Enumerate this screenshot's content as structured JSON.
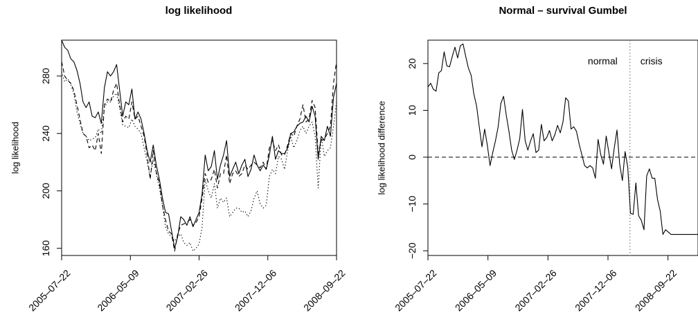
{
  "chart_data": [
    {
      "type": "line",
      "title": "log likelihood",
      "xlabel": "",
      "ylabel": "log likelihood",
      "x_tick_labels": [
        "2005–07–22",
        "2006–05–09",
        "2007–02–26",
        "2007–12–06",
        "2008–09–22"
      ],
      "y_ticks": [
        160,
        200,
        240,
        280
      ],
      "ylim": [
        155,
        305
      ],
      "n_points": 91,
      "grid": false,
      "series": [
        {
          "style": "solid",
          "values": [
            305,
            300,
            298,
            292,
            290,
            284,
            275,
            262,
            258,
            262,
            252,
            251,
            255,
            247,
            272,
            283,
            280,
            283,
            288,
            270,
            252,
            262,
            260,
            271,
            250,
            255,
            250,
            240,
            228,
            220,
            232,
            218,
            208,
            195,
            185,
            184,
            172,
            160,
            168,
            182,
            180,
            176,
            182,
            175,
            180,
            185,
            198,
            225,
            214,
            217,
            228,
            208,
            218,
            225,
            235,
            210,
            215,
            220,
            212,
            218,
            222,
            210,
            215,
            225,
            218,
            214,
            218,
            215,
            225,
            238,
            222,
            228,
            226,
            226,
            230,
            240,
            241,
            245,
            247,
            248,
            252,
            248,
            259,
            252,
            222,
            238,
            235,
            245,
            238,
            265,
            275
          ]
        },
        {
          "style": "dashed",
          "values": [
            290,
            280,
            277,
            275,
            270,
            260,
            250,
            240,
            238,
            230,
            232,
            228,
            240,
            226,
            260,
            264,
            262,
            270,
            275,
            260,
            248,
            252,
            250,
            262,
            250,
            252,
            245,
            238,
            225,
            208,
            228,
            213,
            205,
            190,
            180,
            172,
            170,
            158,
            170,
            176,
            177,
            178,
            180,
            176,
            178,
            182,
            195,
            212,
            206,
            208,
            215,
            202,
            212,
            212,
            225,
            205,
            212,
            214,
            210,
            212,
            218,
            215,
            218,
            220,
            218,
            216,
            220,
            215,
            230,
            235,
            228,
            232,
            225,
            225,
            232,
            240,
            238,
            245,
            250,
            260,
            248,
            250,
            263,
            258,
            226,
            235,
            236,
            240,
            245,
            275,
            290
          ]
        },
        {
          "style": "dotted",
          "values": [
            283,
            276,
            278,
            274,
            268,
            255,
            247,
            240,
            238,
            235,
            236,
            237,
            243,
            240,
            258,
            262,
            262,
            266,
            268,
            258,
            246,
            245,
            244,
            250,
            245,
            243,
            240,
            230,
            220,
            210,
            222,
            212,
            202,
            190,
            175,
            170,
            168,
            165,
            168,
            170,
            164,
            162,
            164,
            158,
            160,
            163,
            175,
            208,
            200,
            195,
            205,
            188,
            195,
            192,
            195,
            182,
            185,
            188,
            188,
            185,
            186,
            182,
            186,
            195,
            200,
            191,
            188,
            190,
            210,
            215,
            212,
            224,
            222,
            215,
            228,
            238,
            230,
            235,
            242,
            245,
            240,
            245,
            248,
            238,
            202,
            238,
            224,
            228,
            230,
            245,
            262
          ]
        }
      ]
    },
    {
      "type": "line",
      "title": "Normal – survival Gumbel",
      "xlabel": "",
      "ylabel": "log likelihood difference",
      "x_tick_labels": [
        "2005–07–22",
        "2006–05–09",
        "2007–02–26",
        "2007–12–06",
        "2008–09–22"
      ],
      "y_ticks": [
        -20,
        -10,
        0,
        10,
        20
      ],
      "ylim": [
        -21,
        25
      ],
      "n_points": 101,
      "grid": false,
      "reference_line": {
        "y": 0,
        "style": "dashed"
      },
      "vertical_marker": {
        "x_index": 74.8,
        "style": "dotted"
      },
      "annotations": [
        "normal",
        "crisis"
      ],
      "series": [
        {
          "style": "solid",
          "values": [
            15,
            15.8,
            14.5,
            14.1,
            18,
            18.5,
            22.5,
            19.5,
            19.3,
            21.5,
            23.5,
            21.2,
            23.8,
            24.2,
            21.5,
            19,
            17.5,
            13.5,
            11,
            6.5,
            2.2,
            6,
            2.5,
            -1.8,
            1,
            3.5,
            6.5,
            11.5,
            13,
            9,
            5.5,
            1.5,
            -0.5,
            1.5,
            4,
            10.2,
            3.5,
            1.5,
            3.5,
            5,
            1,
            1.5,
            7,
            3.5,
            4.2,
            5.7,
            3.5,
            4.8,
            6.8,
            5.2,
            7.5,
            12.7,
            12,
            6,
            6.5,
            5.5,
            2.8,
            0.5,
            -1.8,
            -2.3,
            -1.8,
            -2.3,
            -4.5,
            3.8,
            0.5,
            -1.5,
            4.5,
            1,
            -2.5,
            2,
            5.8,
            -1.5,
            -5,
            1.2,
            -2.2,
            -12,
            -12.2,
            -5.5,
            -12.5,
            -13.5,
            -15.5,
            -4,
            -2.5,
            -4.5,
            -4.5,
            -9,
            -11.5,
            -16.5,
            -15.5,
            -16,
            -16.5,
            -16.5,
            -16.5,
            -16.5,
            -16.5,
            -16.5,
            -16.5,
            -16.5,
            -16.5,
            -16.5,
            -16.5
          ]
        }
      ]
    }
  ]
}
